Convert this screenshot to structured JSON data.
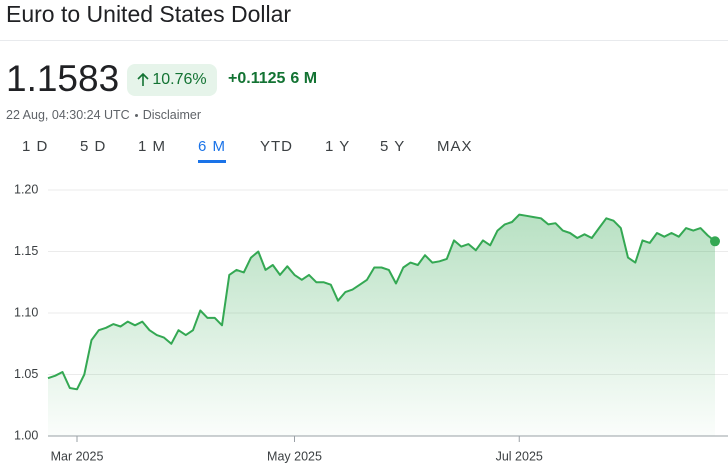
{
  "header": {
    "title": "Euro to United States Dollar",
    "price": "1.1583",
    "change_percent": "10.76%",
    "change_value": "+0.1125",
    "period": "6 M",
    "timestamp": "22 Aug, 04:30:24 UTC",
    "disclaimer": "Disclaimer"
  },
  "tabs": [
    "1 D",
    "5 D",
    "1 M",
    "6 M",
    "YTD",
    "1 Y",
    "5 Y",
    "MAX"
  ],
  "selected_tab": 3,
  "chart_data": {
    "type": "line",
    "color": "#34a853",
    "grid": true,
    "values": [
      1.047,
      1.049,
      1.052,
      1.039,
      1.038,
      1.05,
      1.078,
      1.086,
      1.088,
      1.091,
      1.089,
      1.093,
      1.09,
      1.093,
      1.086,
      1.082,
      1.08,
      1.075,
      1.086,
      1.082,
      1.086,
      1.102,
      1.096,
      1.096,
      1.09,
      1.131,
      1.135,
      1.133,
      1.145,
      1.15,
      1.135,
      1.139,
      1.131,
      1.138,
      1.131,
      1.127,
      1.131,
      1.125,
      1.125,
      1.123,
      1.11,
      1.117,
      1.119,
      1.123,
      1.127,
      1.137,
      1.137,
      1.135,
      1.124,
      1.137,
      1.141,
      1.139,
      1.147,
      1.141,
      1.142,
      1.144,
      1.159,
      1.154,
      1.156,
      1.151,
      1.159,
      1.155,
      1.167,
      1.172,
      1.174,
      1.18,
      1.179,
      1.178,
      1.177,
      1.172,
      1.173,
      1.167,
      1.165,
      1.161,
      1.164,
      1.161,
      1.169,
      1.177,
      1.175,
      1.169,
      1.145,
      1.141,
      1.159,
      1.157,
      1.165,
      1.162,
      1.165,
      1.162,
      1.169,
      1.167,
      1.169,
      1.163,
      1.1583
    ],
    "xlim": [
      0,
      92
    ],
    "xticks": [
      {
        "value": 4,
        "label": "Mar 2025"
      },
      {
        "value": 34,
        "label": "May 2025"
      },
      {
        "value": 65,
        "label": "Jul 2025"
      }
    ],
    "ylim": [
      1,
      1.2
    ],
    "yticks": [
      {
        "value": 1,
        "label": "1.00"
      },
      {
        "value": 1.05,
        "label": "1.05"
      },
      {
        "value": 1.1,
        "label": "1.10"
      },
      {
        "value": 1.15,
        "label": "1.15"
      },
      {
        "value": 1.2,
        "label": "1.20"
      }
    ]
  }
}
